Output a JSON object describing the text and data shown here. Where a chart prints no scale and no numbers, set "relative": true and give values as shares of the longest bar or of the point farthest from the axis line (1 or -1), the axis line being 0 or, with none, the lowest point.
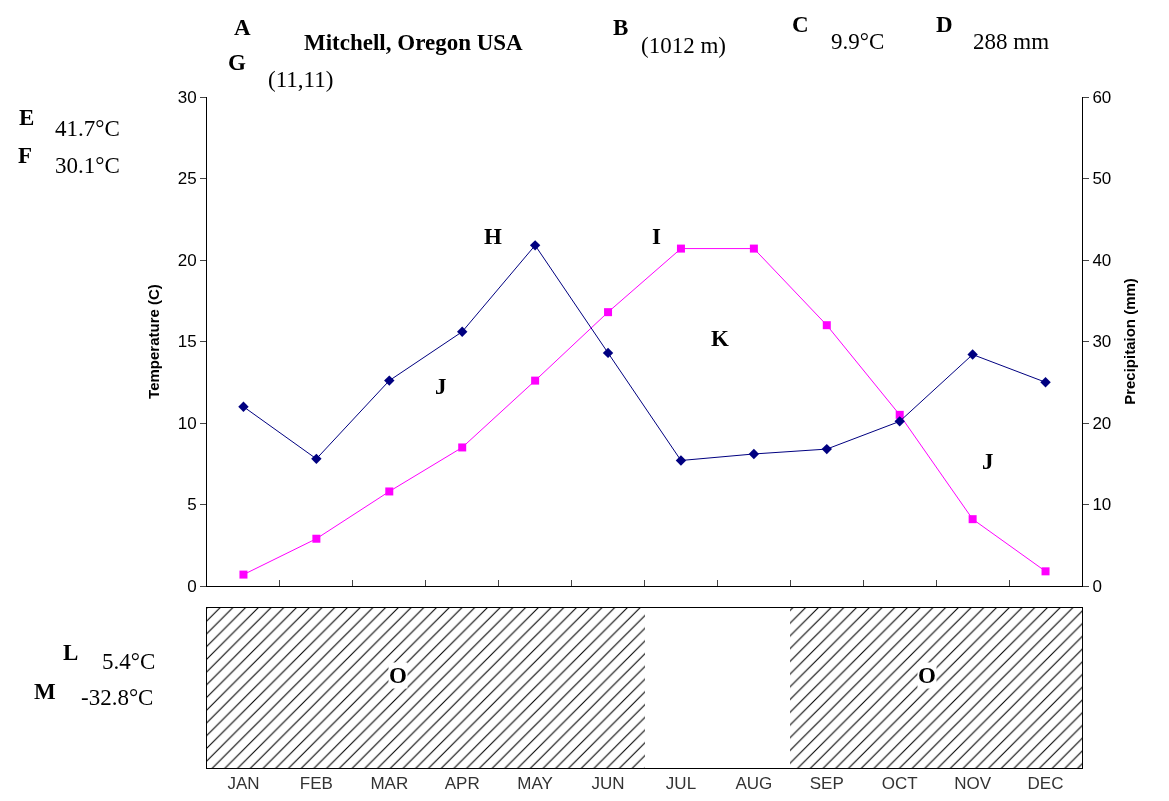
{
  "chart_data": [
    {
      "type": "line",
      "categories": [
        null,
        null,
        null,
        null,
        null,
        null,
        null,
        null,
        null,
        null,
        null,
        null
      ],
      "series": [
        {
          "type": "line",
          "axis": "y2",
          "color": "#000080",
          "marker": "diamond",
          "values": [
            22,
            15.6,
            25.2,
            31.2,
            41.8,
            28.6,
            15.4,
            16.2,
            16.8,
            20.2,
            28.4,
            25
          ]
        },
        {
          "type": "line",
          "axis": "y",
          "color": "#ff00ff",
          "marker": "square",
          "values": [
            0.7,
            2.9,
            5.8,
            8.5,
            12.6,
            16.8,
            20.7,
            20.7,
            16,
            10.5,
            4.1,
            0.9
          ]
        }
      ],
      "ylabel": "Temperature (C)",
      "y2label": "Precipitaion (mm)",
      "ylim": [
        0,
        30
      ],
      "yticks": [
        0,
        5,
        10,
        15,
        20,
        25,
        30
      ],
      "y2lim": [
        0,
        60
      ],
      "y2ticks": [
        0,
        10,
        20,
        30,
        40,
        50,
        60
      ],
      "tick_labels": "y",
      "annotations": [
        "A",
        "Mitchell, Oregon USA",
        "B",
        "(1012 m)",
        "C",
        "9.9°C",
        "D",
        "288 mm",
        "G",
        "(11,11)",
        "E",
        "41.7°C",
        "F",
        "30.1°C",
        "H",
        "I",
        "J",
        "J",
        "K"
      ]
    },
    {
      "type": "bar",
      "relative": true,
      "categories": [
        "JAN",
        "FEB",
        "MAR",
        "APR",
        "MAY",
        "JUN",
        "JUL",
        "AUG",
        "SEP",
        "OCT",
        "NOV",
        "DEC"
      ],
      "values": [
        1,
        1,
        1,
        1,
        1,
        1,
        0,
        0,
        1,
        1,
        1,
        1
      ],
      "color": "#000000",
      "tick_labels": "x",
      "annotations": [
        "L",
        "5.4°C",
        "M",
        "-32.8°C",
        "O",
        "O"
      ]
    }
  ]
}
